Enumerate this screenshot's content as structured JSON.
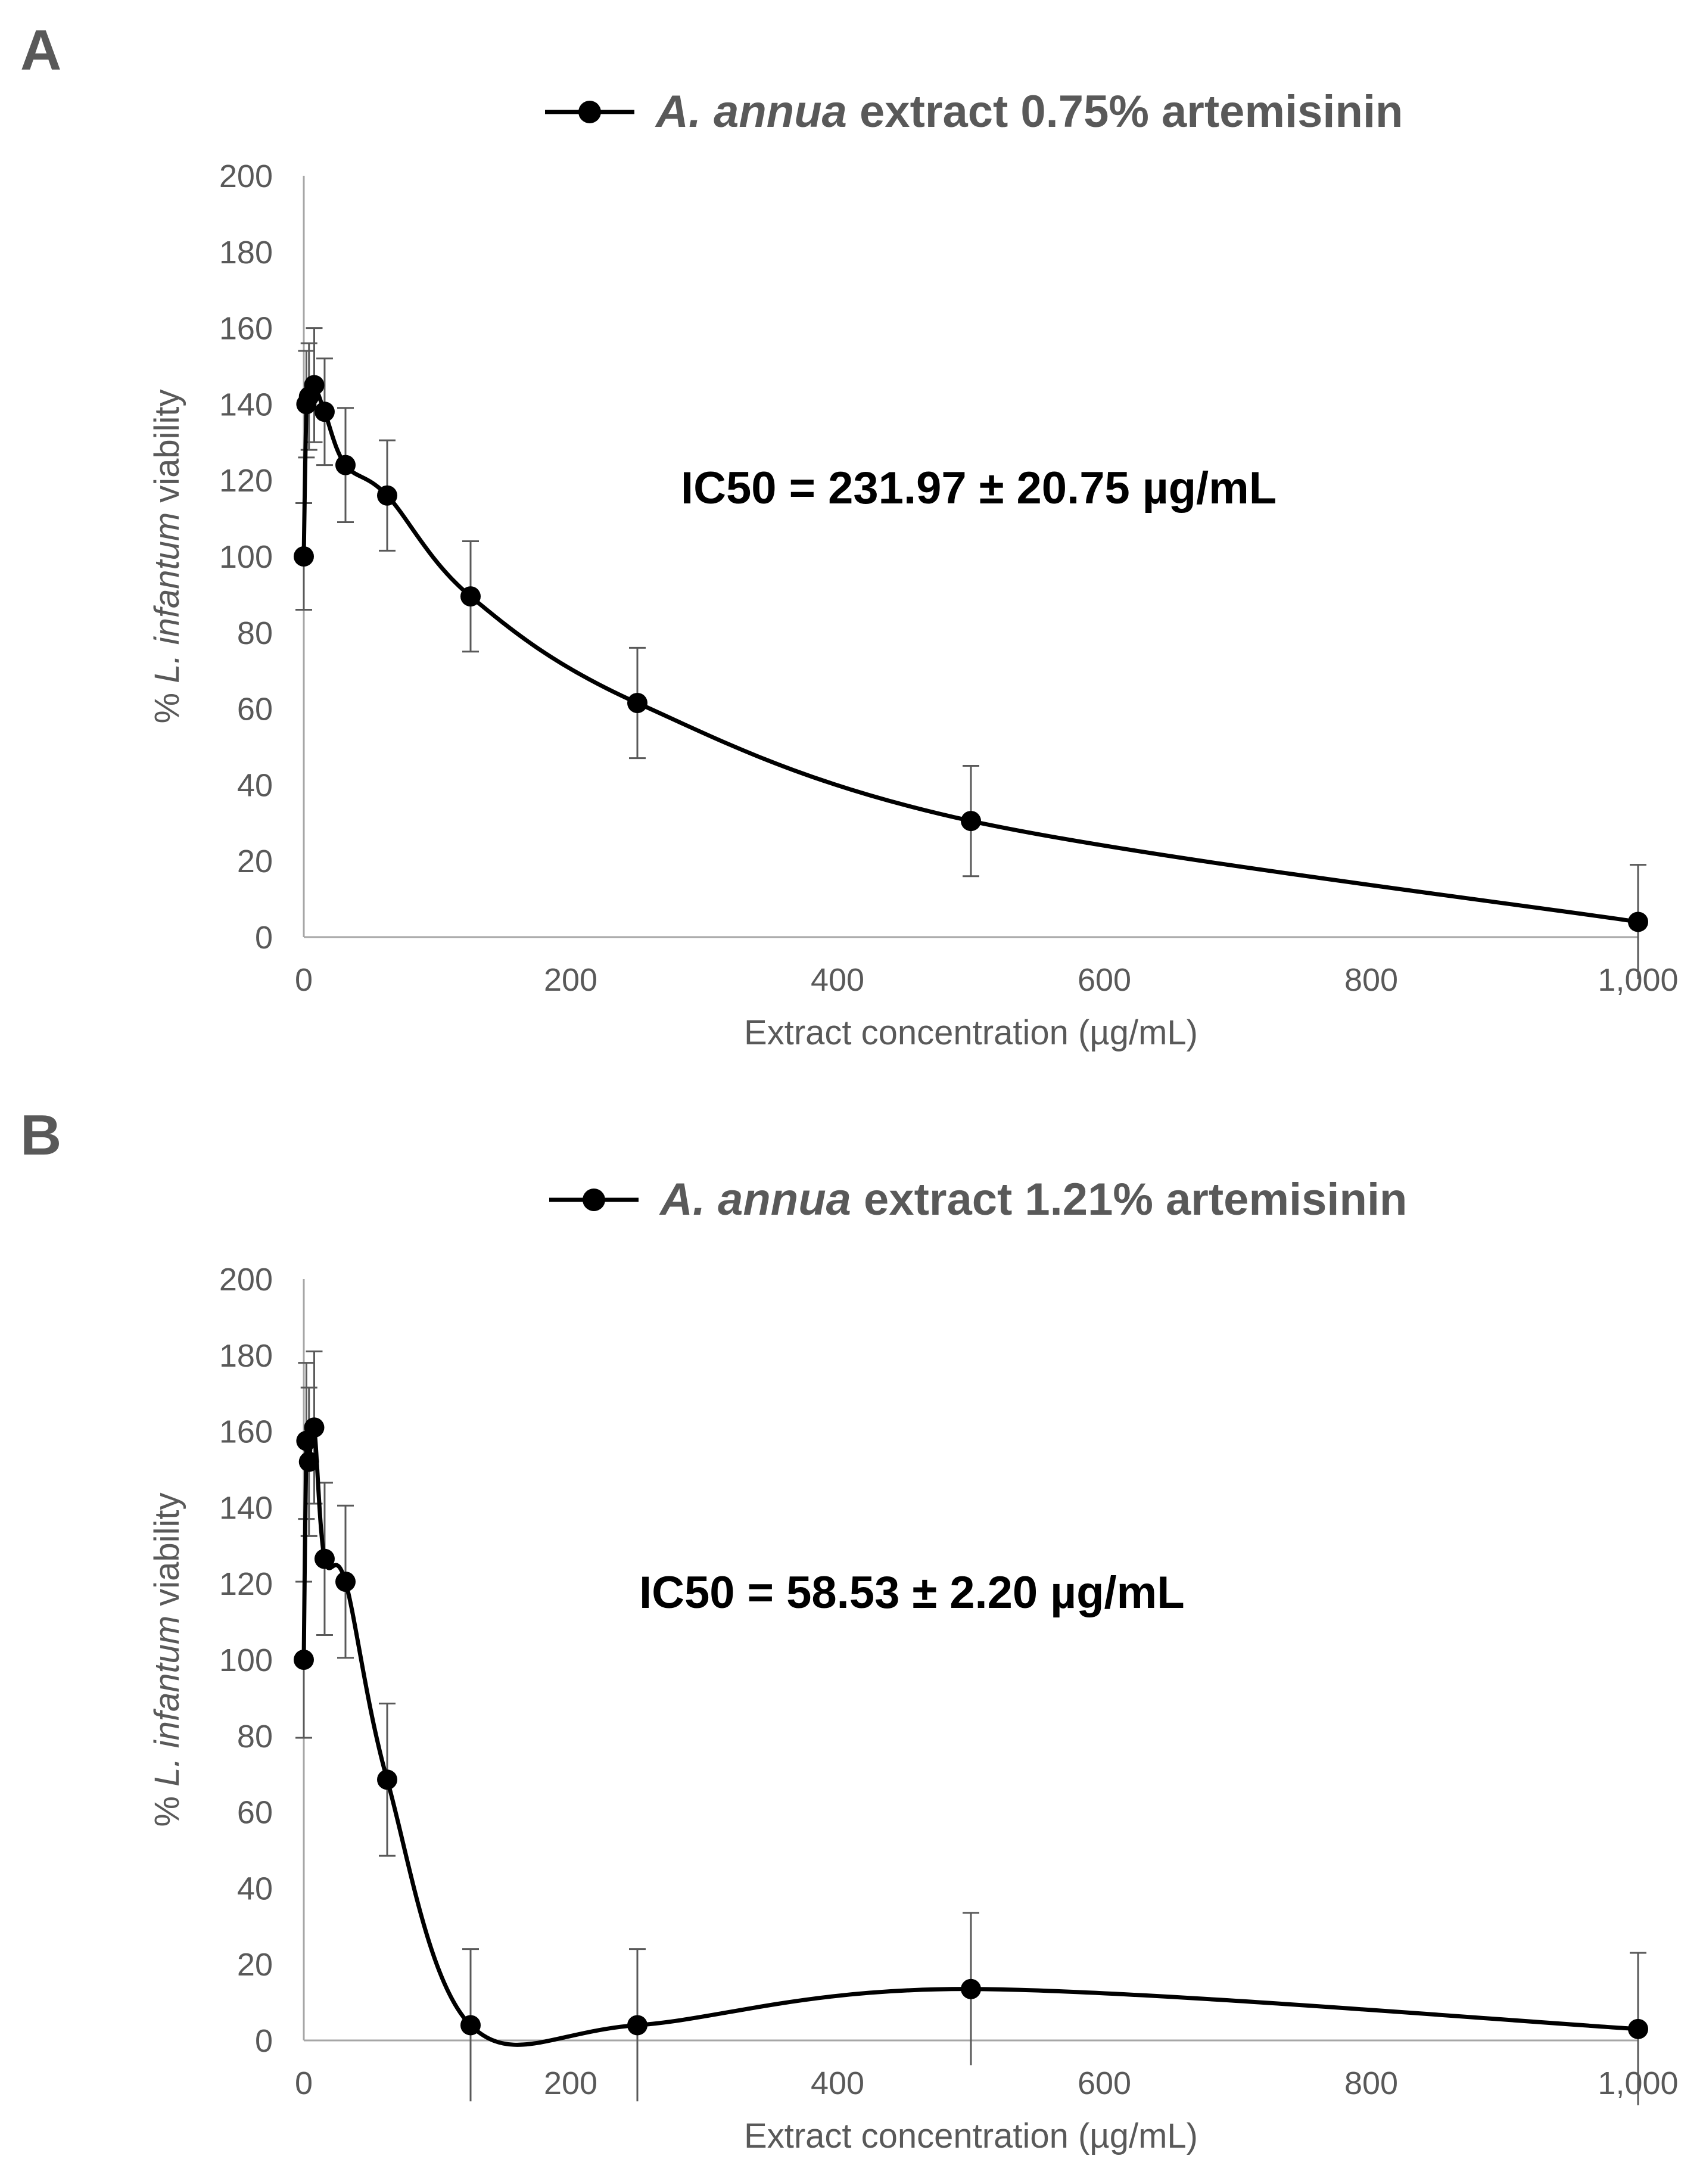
{
  "chart_data": [
    {
      "panel": "A",
      "type": "line",
      "legend": {
        "species": "A. annua",
        "rest": " extract 0.75% artemisinin"
      },
      "annotation": "IC50 = 231.97 ± 20.75 µg/mL",
      "xlabel": "Extract concentration (µg/mL)",
      "ylabel_parts": [
        "% ",
        "L. infantum",
        " viability"
      ],
      "xlim": [
        0,
        1000
      ],
      "ylim": [
        0,
        200
      ],
      "xticks": [
        0,
        200,
        400,
        600,
        800,
        1000
      ],
      "xtick_labels": [
        "0",
        "200",
        "400",
        "600",
        "800",
        "1,000"
      ],
      "yticks": [
        0,
        20,
        40,
        60,
        80,
        100,
        120,
        140,
        160,
        180,
        200
      ],
      "ytick_labels": [
        "0",
        "20",
        "40",
        "60",
        "80",
        "100",
        "120",
        "140",
        "160",
        "180",
        "200"
      ],
      "x": [
        0,
        1.95,
        3.9,
        7.8,
        15.6,
        31.25,
        62.5,
        125,
        250,
        500,
        1000
      ],
      "y": [
        100,
        140,
        142,
        145,
        138,
        124,
        116,
        89.5,
        61.5,
        30.5,
        4
      ],
      "err": [
        14,
        14,
        14,
        15,
        14,
        15,
        14.5,
        14.5,
        14.5,
        14.5,
        15
      ]
    },
    {
      "panel": "B",
      "type": "line",
      "legend": {
        "species": "A. annua",
        "rest": " extract 1.21% artemisinin"
      },
      "annotation": "IC50 = 58.53 ± 2.20 µg/mL",
      "xlabel": "Extract concentration (µg/mL)",
      "ylabel_parts": [
        "% ",
        "L. infantum",
        " viability"
      ],
      "xlim": [
        0,
        1000
      ],
      "ylim": [
        0,
        200
      ],
      "xticks": [
        0,
        200,
        400,
        600,
        800,
        1000
      ],
      "xtick_labels": [
        "0",
        "200",
        "400",
        "600",
        "800",
        "1,000"
      ],
      "yticks": [
        0,
        20,
        40,
        60,
        80,
        100,
        120,
        140,
        160,
        180,
        200
      ],
      "ytick_labels": [
        "0",
        "20",
        "40",
        "60",
        "80",
        "100",
        "120",
        "140",
        "160",
        "180",
        "200"
      ],
      "x": [
        0,
        1.95,
        3.9,
        7.8,
        15.6,
        31.25,
        62.5,
        125,
        250,
        500,
        1000
      ],
      "y": [
        100,
        157.5,
        152,
        161,
        126.5,
        120.5,
        68.5,
        4,
        4,
        13.5,
        3
      ],
      "err": [
        20.5,
        20.5,
        19.5,
        20,
        20,
        20,
        20,
        20,
        20,
        20,
        20
      ]
    }
  ]
}
